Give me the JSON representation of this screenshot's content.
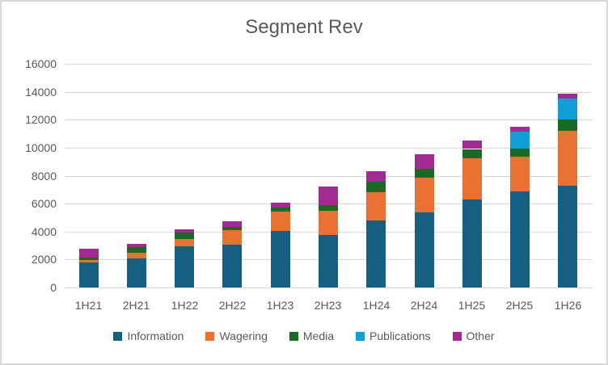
{
  "window": {
    "background_color": "#FFFFFF",
    "border_color": "#D8D8D8",
    "text_color": "#595959",
    "grid_color": "#D9D9D9"
  },
  "chart_data": {
    "type": "bar",
    "stacked": true,
    "title": "Segment Rev",
    "xlabel": "",
    "ylabel": "",
    "categories": [
      "1H21",
      "2H21",
      "1H22",
      "2H22",
      "1H23",
      "2H23",
      "1H24",
      "2H24",
      "1H25",
      "2H25",
      "1H26"
    ],
    "series": [
      {
        "name": "Information",
        "color": "#156082",
        "values": [
          1790,
          2080,
          2950,
          3050,
          4020,
          3770,
          4790,
          5370,
          6290,
          6870,
          7300
        ]
      },
      {
        "name": "Wagering",
        "color": "#E97132",
        "values": [
          180,
          400,
          520,
          1050,
          1400,
          1710,
          2020,
          2480,
          3000,
          2480,
          3900
        ]
      },
      {
        "name": "Media",
        "color": "#196B24",
        "values": [
          170,
          400,
          460,
          230,
          290,
          460,
          750,
          640,
          610,
          580,
          800
        ]
      },
      {
        "name": "Publications",
        "color": "#0F9ED5",
        "values": [
          0,
          0,
          0,
          0,
          0,
          0,
          0,
          0,
          0,
          1210,
          1500
        ]
      },
      {
        "name": "Other",
        "color": "#A02B93",
        "values": [
          630,
          230,
          230,
          400,
          330,
          1300,
          750,
          1040,
          600,
          350,
          350
        ]
      }
    ],
    "totals": [
      2770,
      3110,
      4160,
      4730,
      6040,
      7240,
      8310,
      9530,
      10500,
      11490,
      13850
    ],
    "ylim": [
      0,
      16000
    ],
    "ytick_step": 2000,
    "yticks": [
      "0",
      "2000",
      "4000",
      "6000",
      "8000",
      "10000",
      "12000",
      "14000",
      "16000"
    ],
    "grid": true,
    "legend_position": "bottom"
  }
}
